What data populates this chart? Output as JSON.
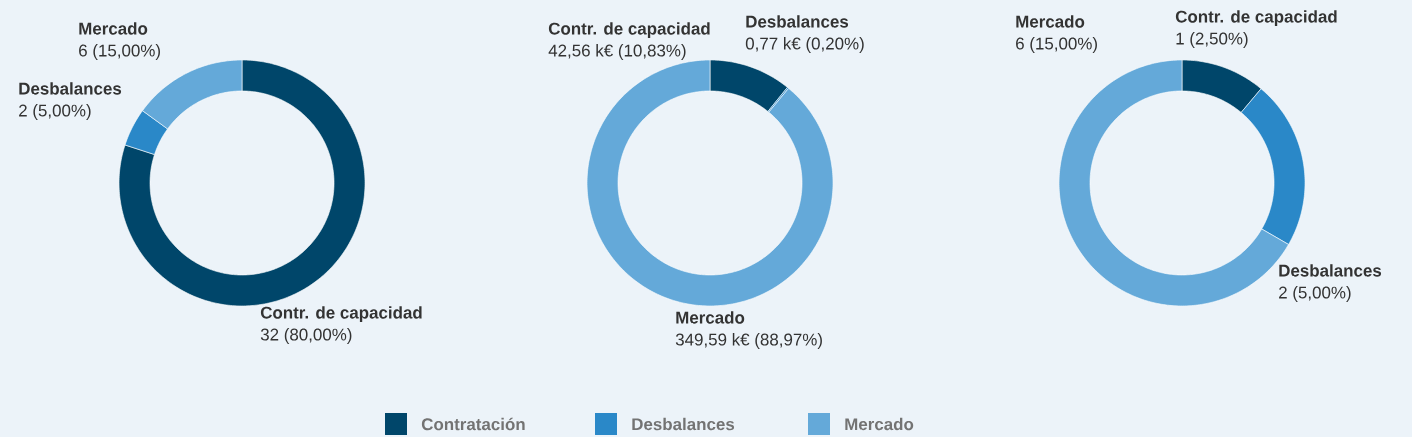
{
  "chart_data": [
    {
      "type": "donut",
      "categories": [
        "Contr. de capacidad",
        "Desbalances",
        "Mercado"
      ],
      "values": [
        32,
        2,
        6
      ],
      "colors": [
        "#00466a",
        "#2a88c8",
        "#64a9d9"
      ],
      "value_labels": [
        "32 (80,00%)",
        "2 (5,00%)",
        "6 (15,00%)"
      ]
    },
    {
      "type": "donut",
      "categories": [
        "Contr. de capacidad",
        "Desbalances",
        "Mercado"
      ],
      "values": [
        42.56,
        0.77,
        349.59
      ],
      "colors": [
        "#00466a",
        "#2a88c8",
        "#64a9d9"
      ],
      "value_labels": [
        "42,56 k€ (10,83%)",
        "0,77 k€ (0,20%)",
        "349,59 k€ (88,97%)"
      ],
      "annotations": [
        "Contratación",
        "Desbalances",
        "Mercado"
      ]
    },
    {
      "type": "donut",
      "categories": [
        "Contr. de capacidad",
        "Desbalances",
        "Mercado"
      ],
      "values": [
        1,
        2,
        6
      ],
      "colors": [
        "#00466a",
        "#2a88c8",
        "#64a9d9"
      ],
      "value_labels": [
        "1 (2,50%)",
        "2 (5,00%)",
        "6 (15,00%)"
      ]
    }
  ]
}
